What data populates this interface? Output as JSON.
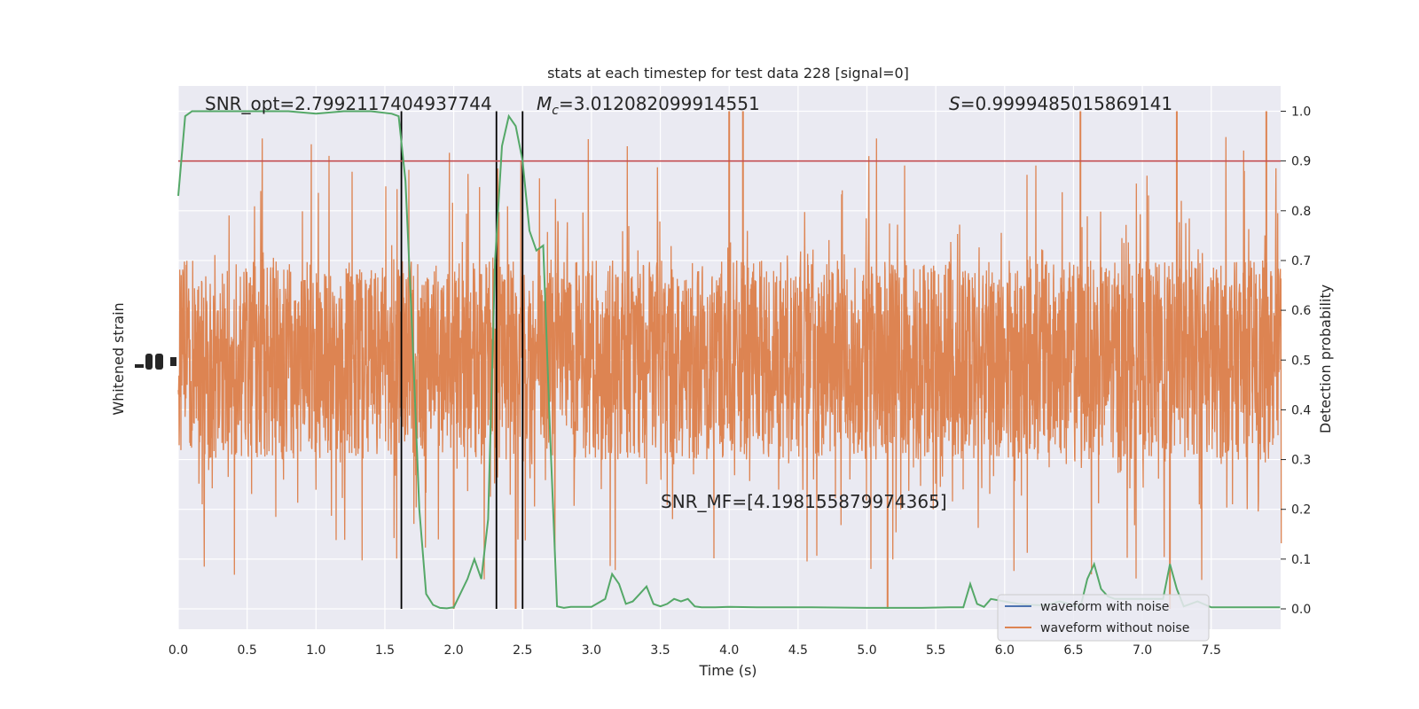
{
  "chart_data": {
    "type": "line",
    "title": "stats at each timestep for test data 228 [signal=0]",
    "xlabel": "Time (s)",
    "ylabel_left": "Whitened strain",
    "ylabel_right": "Detection probability",
    "xlim": [
      0.0,
      8.0
    ],
    "ylim_right": [
      -0.05,
      1.05
    ],
    "x_ticks": [
      "0.0",
      "0.5",
      "1.0",
      "1.5",
      "2.0",
      "2.5",
      "3.0",
      "3.5",
      "4.0",
      "4.5",
      "5.0",
      "5.5",
      "6.0",
      "6.5",
      "7.0",
      "7.5"
    ],
    "y_right_ticks": [
      "0.0",
      "0.1",
      "0.2",
      "0.3",
      "0.4",
      "0.5",
      "0.6",
      "0.7",
      "0.8",
      "0.9",
      "1.0"
    ],
    "grid": true,
    "background": "#eaeaf2",
    "annotations": {
      "snr_opt": "SNR_opt=2.7992117404937744",
      "mc_symbol": "M",
      "mc_sub": "c",
      "mc_value": "=3.012082099914551",
      "s_symbol": "S",
      "s_value": "=0.9999485015869141",
      "snr_mf": "SNR_MF=[4.198155879974365]"
    },
    "threshold": {
      "value": 0.9,
      "color": "#c44e52"
    },
    "vertical_markers_x": [
      1.62,
      2.31,
      2.5
    ],
    "legend": {
      "position": "lower-right",
      "entries": [
        {
          "label": "waveform with noise",
          "color": "#4c72b0"
        },
        {
          "label": "waveform without noise",
          "color": "#dd8452"
        }
      ]
    },
    "series": [
      {
        "color": "#55a868",
        "x": [
          0.0,
          0.05,
          0.1,
          0.2,
          0.4,
          0.6,
          0.8,
          1.0,
          1.2,
          1.4,
          1.55,
          1.6,
          1.65,
          1.7,
          1.75,
          1.8,
          1.85,
          1.9,
          1.95,
          2.0,
          2.1,
          2.15,
          2.2,
          2.25,
          2.3,
          2.35,
          2.4,
          2.45,
          2.5,
          2.55,
          2.6,
          2.65,
          2.7,
          2.75,
          2.8,
          2.85,
          3.0,
          3.1,
          3.15,
          3.2,
          3.25,
          3.3,
          3.35,
          3.4,
          3.45,
          3.5,
          3.55,
          3.6,
          3.65,
          3.7,
          3.75,
          3.8,
          3.85,
          3.9,
          4.0,
          4.2,
          4.4,
          4.6,
          5.0,
          5.4,
          5.6,
          5.7,
          5.75,
          5.8,
          5.85,
          5.9,
          6.0,
          6.1,
          6.2,
          6.3,
          6.4,
          6.55,
          6.6,
          6.65,
          6.7,
          6.75,
          6.8,
          6.9,
          7.0,
          7.1,
          7.15,
          7.2,
          7.25,
          7.3,
          7.35,
          7.4,
          7.5,
          7.6,
          7.7,
          8.0
        ],
        "values": [
          0.83,
          0.99,
          1.0,
          1.0,
          1.0,
          1.0,
          1.0,
          0.995,
          1.0,
          1.0,
          0.995,
          0.99,
          0.86,
          0.55,
          0.2,
          0.03,
          0.008,
          0.002,
          0.001,
          0.003,
          0.06,
          0.1,
          0.06,
          0.18,
          0.7,
          0.93,
          0.99,
          0.97,
          0.9,
          0.76,
          0.72,
          0.73,
          0.35,
          0.005,
          0.002,
          0.004,
          0.004,
          0.02,
          0.07,
          0.05,
          0.01,
          0.015,
          0.03,
          0.045,
          0.01,
          0.005,
          0.01,
          0.02,
          0.015,
          0.02,
          0.005,
          0.003,
          0.003,
          0.003,
          0.004,
          0.003,
          0.003,
          0.003,
          0.002,
          0.002,
          0.003,
          0.003,
          0.05,
          0.01,
          0.004,
          0.02,
          0.015,
          0.01,
          0.008,
          0.007,
          0.015,
          0.003,
          0.06,
          0.09,
          0.04,
          0.025,
          0.02,
          0.02,
          0.02,
          0.02,
          0.02,
          0.09,
          0.04,
          0.005,
          0.01,
          0.015,
          0.003,
          0.003,
          0.003,
          0.003
        ]
      }
    ],
    "noise_trace": {
      "color": "#dd8452",
      "center": 0.5,
      "typical_half_range": 0.2,
      "max_peak": 1.0,
      "min_trough": 0.0,
      "note_peaks_x": [
        4.0,
        4.1,
        6.55,
        7.25,
        7.9
      ]
    }
  }
}
